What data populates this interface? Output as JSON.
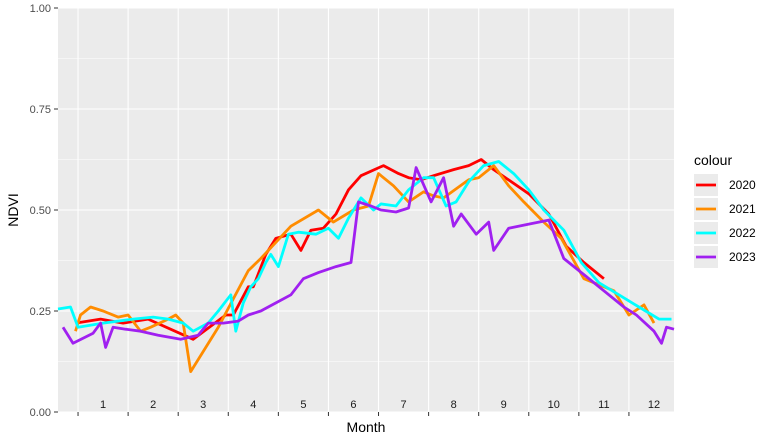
{
  "chart_data": {
    "type": "line",
    "xlabel": "Month",
    "ylabel": "NDVI",
    "ylim": [
      0,
      1
    ],
    "y_ticks": [
      0,
      0.25,
      0.5,
      0.75,
      1
    ],
    "y_tick_labels": [
      "0.00",
      "0.25",
      "0.50",
      "0.75",
      "1.00"
    ],
    "xlim": [
      0.1,
      12.4
    ],
    "x_ticks": [
      1,
      2,
      3,
      4,
      5,
      6,
      7,
      8,
      9,
      10,
      11,
      12
    ],
    "x_tick_labels": [
      "1",
      "2",
      "3",
      "4",
      "5",
      "6",
      "7",
      "8",
      "9",
      "10",
      "11",
      "12"
    ],
    "grid": true,
    "panel_background": "#ebebeb",
    "legend_title": "colour",
    "legend_position": "right",
    "series": [
      {
        "name": "2020",
        "color": "#ff0000",
        "x": [
          0.45,
          0.95,
          1.4,
          1.9,
          2.8,
          3.45,
          3.6,
          3.9,
          4.0,
          4.25,
          4.45,
          4.75,
          4.95,
          5.15,
          5.4,
          5.65,
          5.9,
          6.15,
          6.6,
          6.9,
          7.1,
          7.35,
          7.6,
          8.0,
          8.3,
          8.55,
          8.8,
          9.5,
          9.9,
          10.25,
          10.6,
          11.0
        ],
        "y": [
          0.22,
          0.23,
          0.22,
          0.23,
          0.18,
          0.24,
          0.24,
          0.31,
          0.31,
          0.39,
          0.43,
          0.44,
          0.4,
          0.45,
          0.455,
          0.49,
          0.55,
          0.585,
          0.61,
          0.59,
          0.58,
          0.575,
          0.585,
          0.6,
          0.61,
          0.625,
          0.6,
          0.54,
          0.49,
          0.41,
          0.37,
          0.33
        ]
      },
      {
        "name": "2021",
        "color": "#ff8c00",
        "x": [
          0.45,
          0.55,
          0.75,
          1.0,
          1.3,
          1.5,
          1.75,
          1.95,
          2.3,
          2.45,
          2.6,
          2.75,
          3.3,
          3.6,
          3.9,
          4.15,
          4.45,
          4.75,
          5.3,
          5.6,
          6.0,
          6.3,
          6.5,
          6.8,
          7.1,
          7.4,
          7.6,
          7.8,
          8.3,
          8.5,
          8.8,
          9.1,
          9.4,
          9.8,
          10.15,
          10.6,
          11.2,
          11.5,
          11.8,
          12.0
        ],
        "y": [
          0.2,
          0.24,
          0.26,
          0.25,
          0.235,
          0.24,
          0.2,
          0.21,
          0.23,
          0.24,
          0.22,
          0.1,
          0.21,
          0.28,
          0.35,
          0.38,
          0.42,
          0.46,
          0.5,
          0.47,
          0.5,
          0.51,
          0.59,
          0.56,
          0.52,
          0.545,
          0.535,
          0.53,
          0.575,
          0.58,
          0.61,
          0.56,
          0.52,
          0.47,
          0.43,
          0.33,
          0.3,
          0.24,
          0.265,
          0.22
        ]
      },
      {
        "name": "2022",
        "color": "#00ffff",
        "x": [
          0.1,
          0.35,
          0.5,
          1.0,
          1.6,
          2.0,
          2.3,
          2.6,
          2.8,
          3.1,
          3.3,
          3.55,
          3.65,
          3.8,
          3.95,
          4.1,
          4.25,
          4.35,
          4.5,
          4.7,
          4.9,
          5.25,
          5.5,
          5.7,
          5.9,
          6.15,
          6.4,
          6.55,
          6.85,
          7.1,
          7.4,
          7.6,
          7.85,
          8.05,
          8.3,
          8.6,
          8.9,
          9.2,
          9.5,
          9.8,
          10.2,
          10.55,
          10.9,
          11.3,
          11.7,
          12.1,
          12.35
        ],
        "y": [
          0.255,
          0.26,
          0.21,
          0.22,
          0.23,
          0.235,
          0.23,
          0.22,
          0.2,
          0.22,
          0.25,
          0.29,
          0.2,
          0.27,
          0.31,
          0.33,
          0.37,
          0.39,
          0.36,
          0.44,
          0.445,
          0.44,
          0.455,
          0.43,
          0.48,
          0.53,
          0.5,
          0.515,
          0.51,
          0.55,
          0.58,
          0.58,
          0.51,
          0.52,
          0.57,
          0.61,
          0.62,
          0.59,
          0.55,
          0.5,
          0.45,
          0.37,
          0.32,
          0.29,
          0.26,
          0.23,
          0.23
        ]
      },
      {
        "name": "2023",
        "color": "#a020f0",
        "x": [
          0.2,
          0.4,
          0.8,
          0.95,
          1.05,
          1.2,
          1.45,
          1.75,
          2.1,
          2.55,
          2.9,
          3.1,
          3.4,
          3.7,
          3.9,
          4.15,
          4.45,
          4.75,
          5.0,
          5.3,
          5.65,
          5.95,
          6.1,
          6.35,
          6.55,
          6.85,
          7.1,
          7.25,
          7.55,
          7.8,
          8.0,
          8.15,
          8.45,
          8.7,
          8.8,
          9.1,
          9.5,
          9.9,
          10.2,
          10.6,
          11.0,
          11.4,
          11.65,
          12.0,
          12.15,
          12.25,
          12.4
        ],
        "y": [
          0.21,
          0.17,
          0.195,
          0.22,
          0.16,
          0.21,
          0.205,
          0.2,
          0.19,
          0.18,
          0.19,
          0.22,
          0.22,
          0.225,
          0.24,
          0.25,
          0.27,
          0.29,
          0.33,
          0.345,
          0.36,
          0.37,
          0.52,
          0.51,
          0.5,
          0.495,
          0.505,
          0.605,
          0.52,
          0.58,
          0.46,
          0.49,
          0.44,
          0.47,
          0.4,
          0.455,
          0.465,
          0.475,
          0.38,
          0.34,
          0.3,
          0.26,
          0.24,
          0.2,
          0.17,
          0.21,
          0.205
        ]
      }
    ]
  }
}
